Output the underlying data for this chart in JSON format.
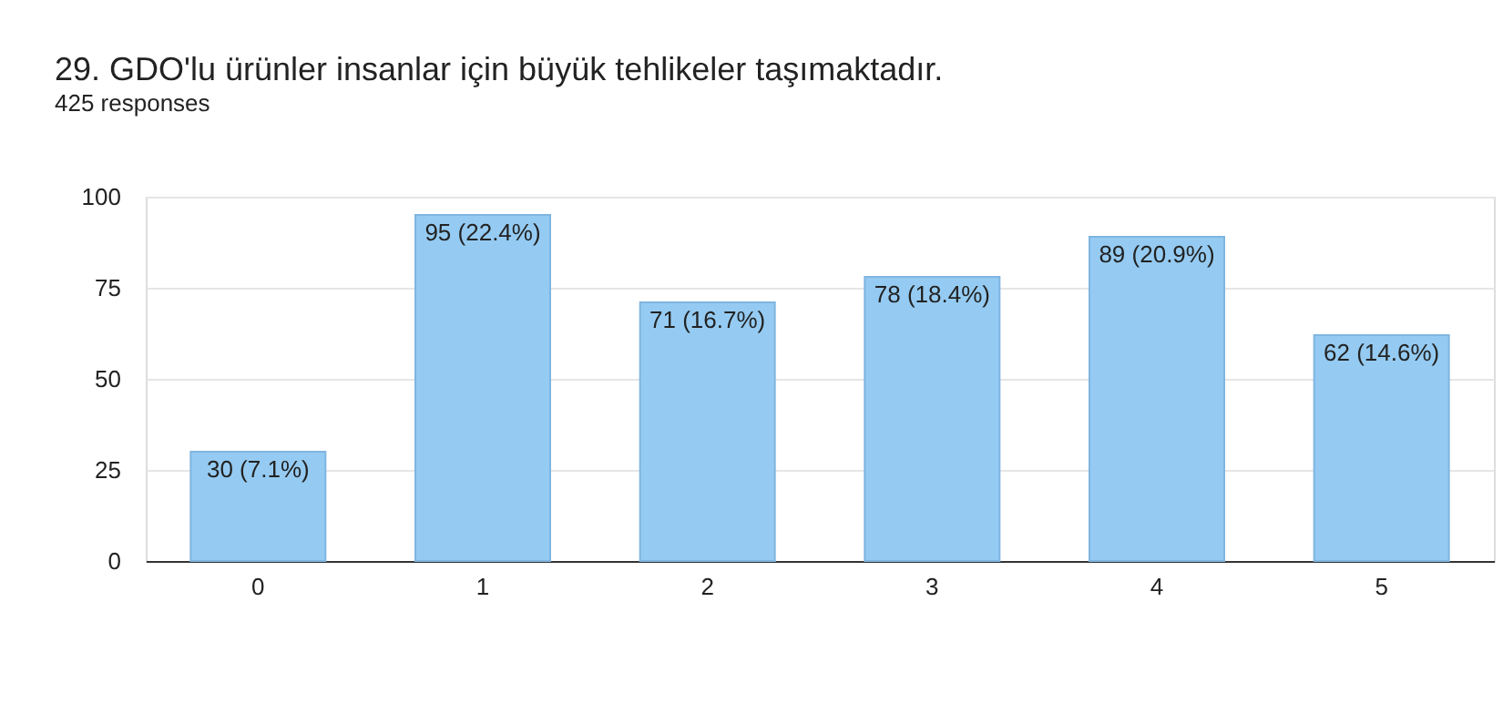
{
  "chart_data": {
    "type": "bar",
    "title": "29. GDO'lu ürünler insanlar için büyük tehlikeler taşımaktadır.",
    "subtitle": "425 responses",
    "categories": [
      "0",
      "1",
      "2",
      "3",
      "4",
      "5"
    ],
    "values": [
      30,
      95,
      71,
      78,
      89,
      62
    ],
    "value_labels": [
      "30 (7.1%)",
      "95 (22.4%)",
      "71 (16.7%)",
      "78 (18.4%)",
      "89 (20.9%)",
      "62 (14.6%)"
    ],
    "color": "#95cbf2",
    "ylim": [
      0,
      100
    ],
    "yticks": [
      0,
      25,
      50,
      75,
      100
    ],
    "grid": "y"
  }
}
